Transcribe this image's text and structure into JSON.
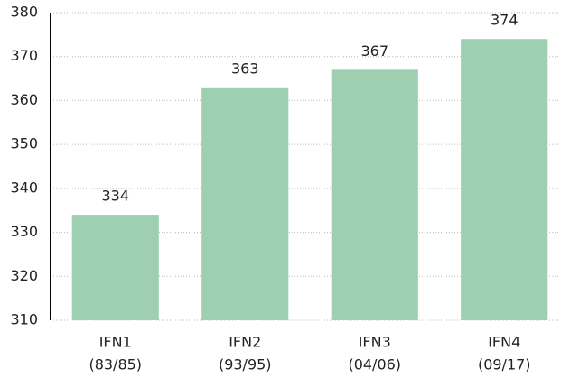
{
  "chart_data": {
    "type": "bar",
    "categories": [
      [
        "IFN1",
        "(83/85)"
      ],
      [
        "IFN2",
        "(93/95)"
      ],
      [
        "IFN3",
        "(04/06)"
      ],
      [
        "IFN4",
        "(09/17)"
      ]
    ],
    "values": [
      334,
      363,
      367,
      374
    ],
    "color": "#9dcfb0",
    "ylim": [
      310,
      380
    ],
    "yticks": [
      310,
      320,
      330,
      340,
      350,
      360,
      370,
      380
    ],
    "grid": true
  }
}
